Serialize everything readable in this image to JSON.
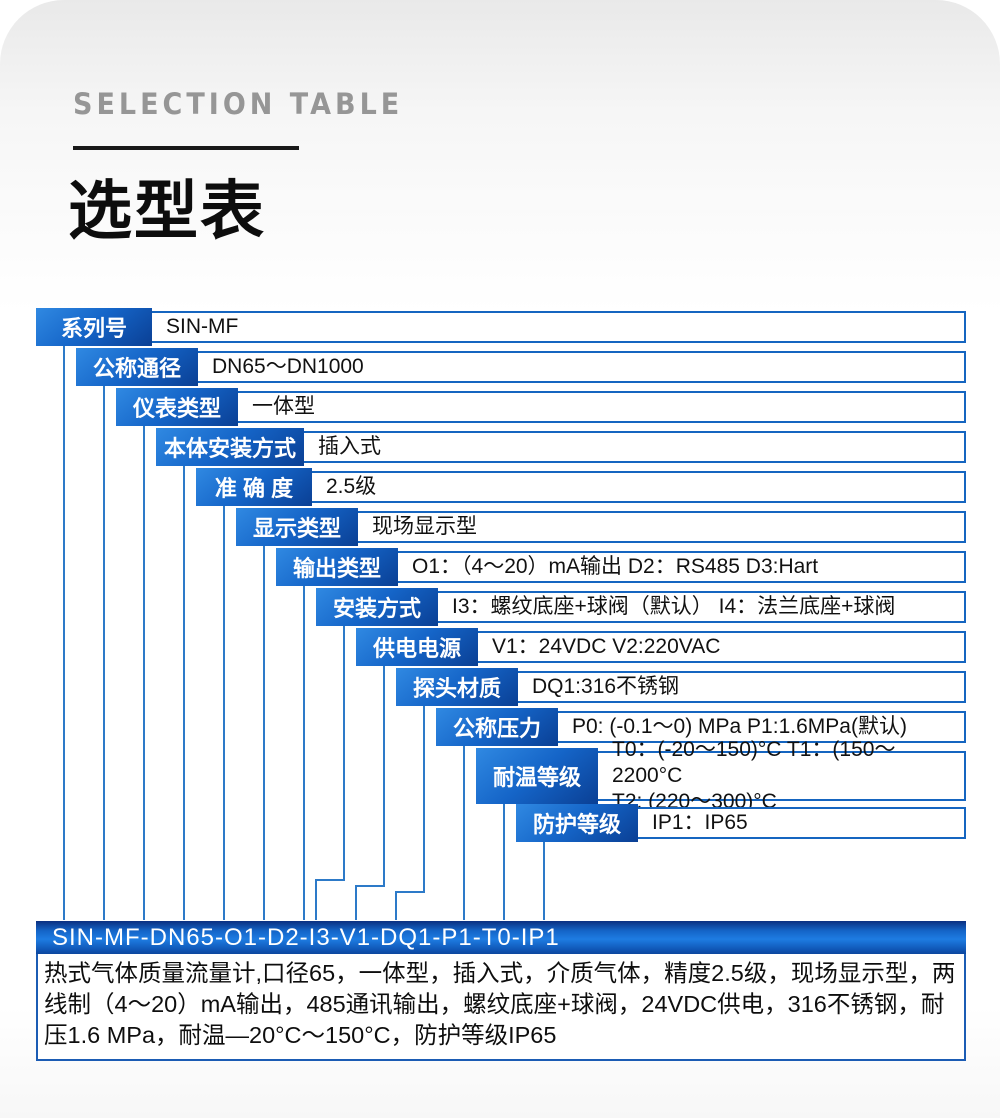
{
  "header": {
    "eyebrow": "SELECTION TABLE",
    "title": "选型表"
  },
  "table": {
    "rows": [
      {
        "label": "系列号",
        "value": "SIN-MF"
      },
      {
        "label": "公称通径",
        "value": "DN65～DN1000"
      },
      {
        "label": "仪表类型",
        "value": "一体型"
      },
      {
        "label": "本体安装方式",
        "value": "插入式"
      },
      {
        "label": "准 确 度",
        "value": "2.5级"
      },
      {
        "label": "显示类型",
        "value": "现场显示型"
      },
      {
        "label": "输出类型",
        "value": "O1：（4～20）mA输出 D2：RS485 D3:Hart"
      },
      {
        "label": "安装方式",
        "value": "I3：螺纹底座+球阀（默认） I4：法兰底座+球阀"
      },
      {
        "label": "供电电源",
        "value": "V1：24VDC V2:220VAC"
      },
      {
        "label": "探头材质",
        "value": "DQ1:316不锈钢"
      },
      {
        "label": "公称压力",
        "value": "P0: (-0.1～0) MPa P1:1.6MPa(默认)"
      },
      {
        "label": "耐温等级",
        "value": "T0：(-20～150)°C T1：(150～2200°C\nT2: (220～300)°C"
      },
      {
        "label": "防护等级",
        "value": "IP1：IP65"
      }
    ]
  },
  "result": {
    "model_code": "SIN-MF-DN65-O1-D2-I3-V1-DQ1-P1-T0-IP1",
    "description": "热式气体质量流量计,口径65，一体型，插入式，介质气体，精度2.5级，现场显示型，两线制（4～20）mA输出，485通讯输出，螺纹底座+球阀，24VDC供电，316不锈钢，耐压1.6 MPa，耐温—20°C～150°C，防护等级IP65"
  },
  "colors": {
    "label_blue_light": "#3089e2",
    "label_blue_dark": "#0a3f94",
    "row_border_blue": "#1565c0",
    "connector_blue": "#2d7ac8",
    "bar_blue_mid": "#1e7ce2",
    "eyebrow_gray": "#969696",
    "divider_black": "#191919"
  }
}
